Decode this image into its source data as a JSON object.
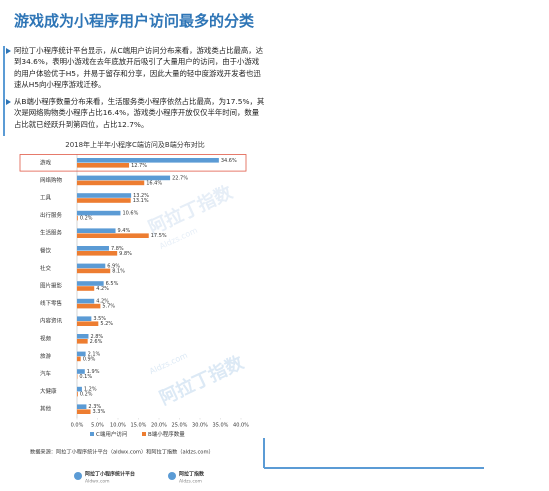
{
  "header": {
    "title": "游戏成为小程序用户访问最多的分类"
  },
  "bullets": [
    "阿拉丁小程序统计平台显示，从C端用户访问分布来看，游戏类占比最高，达到34.6%，表明小游戏在去年底放开后吸引了大量用户的访问，由于小游戏的用户体验优于H5，并易于留存和分享，因此大量的轻中度游戏开发者也迅速从H5向小程序游戏迁移。",
    "从B端小程序数量分布来看，生活服务类小程序依然占比最高，为17.5%，其次是网络购物类小程序占比16.4%，游戏类小程序开放仅仅半年时间，数量占比就已经跃升到第四位，占比12.7%。"
  ],
  "chart_data": {
    "type": "hbar",
    "title": "2018年上半年小程序C端访问及B端分布对比",
    "categories": [
      "游戏",
      "网络购物",
      "工具",
      "出行服务",
      "生活服务",
      "餐饮",
      "社交",
      "图片摄影",
      "线下零售",
      "内容资讯",
      "视频",
      "旅游",
      "汽车",
      "大健康",
      "其他"
    ],
    "series": [
      {
        "name": "C端用户访问",
        "color": "#5b9bd5",
        "values": [
          34.6,
          22.7,
          13.2,
          10.6,
          9.4,
          7.8,
          6.9,
          6.5,
          4.2,
          3.5,
          2.8,
          2.1,
          1.9,
          1.2,
          2.3
        ],
        "value_labels": [
          "34.6%",
          "22.7%",
          "13.2%",
          "10.6%",
          "9.4%",
          "7.8%",
          "6.9%",
          "6.5%",
          "4.2%",
          "3.5%",
          "2.8%",
          "2.1%",
          "1.9%",
          "1.2%",
          "2.3%"
        ]
      },
      {
        "name": "B端小程序数量",
        "color": "#ed7d31",
        "values": [
          12.7,
          16.4,
          13.1,
          0.2,
          17.5,
          9.8,
          8.1,
          4.2,
          5.7,
          5.2,
          2.6,
          0.9,
          0.1,
          0.2,
          3.3
        ],
        "value_labels": [
          "12.7%",
          "16.4%",
          "13.1%",
          "0.2%",
          "17.5%",
          "9.8%",
          "8.1%",
          "4.2%",
          "5.7%",
          "5.2%",
          "2.6%",
          "0.9%",
          "0.1%",
          "0.2%",
          "3.3%"
        ]
      }
    ],
    "xlim": [
      0,
      40
    ],
    "xticks": [
      {
        "value": 0,
        "label": "0.0%"
      },
      {
        "value": 5,
        "label": "5.0%"
      },
      {
        "value": 10,
        "label": "10.0%"
      },
      {
        "value": 15,
        "label": "15.0%"
      },
      {
        "value": 20,
        "label": "20.0%"
      },
      {
        "value": 25,
        "label": "25.0%"
      },
      {
        "value": 30,
        "label": "30.0%"
      },
      {
        "value": 35,
        "label": "35.0%"
      },
      {
        "value": 40,
        "label": "40.0%"
      }
    ],
    "grid": false,
    "highlight_category": 0
  },
  "source": "数据来源：阿拉丁小程序统计平台（aldwx.com）和阿拉丁指数（aldzs.com）",
  "footer": [
    {
      "name": "阿拉丁小程序统计平台",
      "site": "Aldwx.com"
    },
    {
      "name": "阿拉丁指数",
      "site": "Aldzs.com"
    }
  ],
  "watermark": {
    "name": "阿拉丁指数",
    "site": "Aldzs.com"
  }
}
